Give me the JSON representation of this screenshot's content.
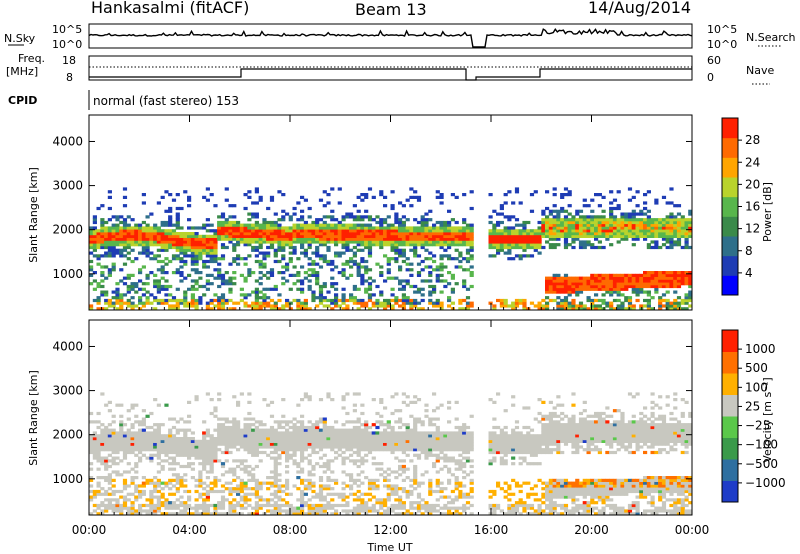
{
  "header": {
    "station": "Hankasalmi (fitACF)",
    "beam": "Beam 13",
    "date": "14/Aug/2014"
  },
  "top_panels": {
    "nsky_label": "N.Sky",
    "nsky_ticks": [
      "10^5",
      "10^0"
    ],
    "nsearch_label": "N.Search",
    "nsearch_ticks": [
      "10^5",
      "10^0"
    ],
    "freq_label_1": "Freq.",
    "freq_label_2": "[MHz]",
    "freq_ticks": [
      "18",
      "8"
    ],
    "nave_label": "Nave",
    "nave_ticks": [
      "60",
      "0"
    ],
    "cpid_label": "CPID",
    "cpid_text": "normal (fast stereo) 153"
  },
  "chart_data": [
    {
      "type": "heatmap",
      "title": "",
      "xlabel": "",
      "ylabel": "Slant Range [km]",
      "xlim": [
        0,
        24
      ],
      "ylim": [
        180,
        4600
      ],
      "yticks": [
        "1000",
        "2000",
        "3000",
        "4000"
      ],
      "colorbar_label": "Power [dB]",
      "colorbar_ticks": [
        "28",
        "24",
        "20",
        "16",
        "12",
        "8",
        "4"
      ],
      "colors": [
        "#0000ff",
        "#1e3cb4",
        "#2e6f8a",
        "#3a8a4a",
        "#58b64c",
        "#b9d32c",
        "#ffa500",
        "#ff6a00",
        "#ff2000"
      ],
      "features": [
        {
          "t": [
            0,
            15.2
          ],
          "band_center_km": 1800,
          "dominant": "yellow-red"
        },
        {
          "t": [
            15.8,
            18.0
          ],
          "band_center_km": 1750,
          "dominant": "red"
        },
        {
          "t": [
            18.0,
            24
          ],
          "band_center_km": 700,
          "dominant": "red"
        }
      ],
      "data_gap": [
        15.2,
        15.8
      ]
    },
    {
      "type": "heatmap",
      "title": "",
      "xlabel": "Time UT",
      "ylabel": "Slant Range [km]",
      "xlim": [
        0,
        24
      ],
      "ylim": [
        180,
        4600
      ],
      "xticks": [
        "00:00",
        "04:00",
        "08:00",
        "12:00",
        "16:00",
        "20:00",
        "00:00"
      ],
      "yticks": [
        "1000",
        "2000",
        "3000",
        "4000"
      ],
      "colorbar_label": "Velocity [m s⁻¹]",
      "colorbar_ticks": [
        "1000",
        "500",
        "100",
        "25",
        "−25",
        "−100",
        "−500",
        "−1000"
      ],
      "colors": [
        "#1e3cc8",
        "#2e6fa0",
        "#3a9a4a",
        "#5ac84a",
        "#c8c8c0",
        "#ffb000",
        "#ff7000",
        "#ff2000"
      ],
      "features": [
        {
          "t": [
            0,
            24
          ],
          "dominant": "grey (ground scatter)"
        },
        {
          "t": [
            18,
            24
          ],
          "secondary": "orange"
        }
      ],
      "data_gap": [
        15.2,
        15.8
      ]
    }
  ]
}
